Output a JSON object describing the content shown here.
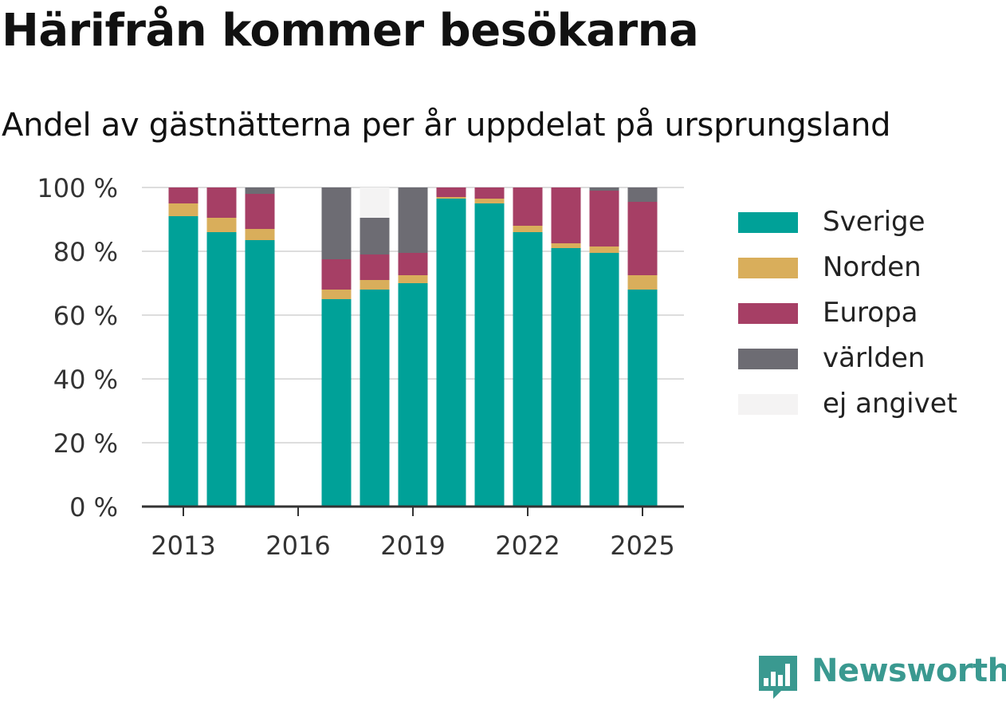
{
  "title": "Härifrån kommer besökarna",
  "subtitle": "Andel av gästnätterna per år uppdelat på ursprungsland",
  "brand": {
    "name": "Newsworthy",
    "icon": "bar-chart-logo-icon",
    "color": "#3a9990"
  },
  "chart_data": {
    "type": "bar",
    "stacked": true,
    "title": "Härifrån kommer besökarna",
    "subtitle": "Andel av gästnätterna per år uppdelat på ursprungsland",
    "categories": [
      "2013",
      "2014",
      "2015",
      "2016",
      "2017",
      "2018",
      "2019",
      "2020",
      "2021",
      "2022",
      "2023",
      "2024",
      "2025"
    ],
    "x_tick_labels": [
      "2013",
      "2016",
      "2019",
      "2022",
      "2025"
    ],
    "y_ticks": [
      0,
      20,
      40,
      60,
      80,
      100
    ],
    "y_tick_labels": [
      "0 %",
      "20 %",
      "40 %",
      "60 %",
      "80 %",
      "100 %"
    ],
    "ylim": [
      0,
      100
    ],
    "xlabel": "",
    "ylabel": "",
    "grid": true,
    "legend_position": "right",
    "series": [
      {
        "name": "Sverige",
        "color": "#00a198",
        "values": [
          91,
          86,
          83.5,
          null,
          65,
          68,
          70,
          96.5,
          95,
          86,
          81,
          79.5,
          68
        ]
      },
      {
        "name": "Norden",
        "color": "#d9ae5b",
        "values": [
          4,
          4.5,
          3.5,
          null,
          3,
          3,
          2.5,
          0.5,
          1.5,
          2,
          1.5,
          2,
          4.5
        ]
      },
      {
        "name": "Europa",
        "color": "#a63f65",
        "values": [
          5,
          9.5,
          11,
          null,
          9.5,
          8,
          7,
          3,
          3.5,
          12,
          17.5,
          17.5,
          23
        ]
      },
      {
        "name": "världen",
        "color": "#6d6c73",
        "values": [
          0,
          0,
          2,
          null,
          22.5,
          11.5,
          20.5,
          0,
          0,
          0,
          0,
          1,
          4.5
        ]
      },
      {
        "name": "ej angivet",
        "color": "#f4f3f3",
        "values": [
          0,
          0,
          0,
          null,
          0,
          9.5,
          0,
          0,
          0,
          0,
          0,
          0,
          0
        ]
      }
    ]
  }
}
